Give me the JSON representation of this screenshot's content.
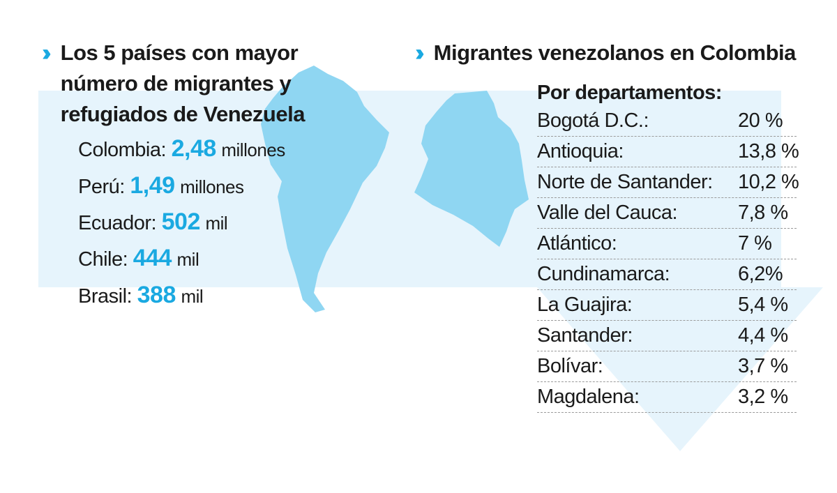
{
  "left": {
    "title": "Los 5 países con mayor número de migrantes y refugiados de Venezuela",
    "countries": [
      {
        "name": "Colombia:",
        "value": "2,48",
        "unit": "millones"
      },
      {
        "name": "Perú:",
        "value": "1,49",
        "unit": "millones"
      },
      {
        "name": "Ecuador:",
        "value": "502",
        "unit": "mil"
      },
      {
        "name": "Chile:",
        "value": "444",
        "unit": "mil"
      },
      {
        "name": "Brasil:",
        "value": "388",
        "unit": "mil"
      }
    ]
  },
  "right": {
    "title": "Migrantes venezolanos en Colombia",
    "subtitle": "Por departamentos:",
    "departments": [
      {
        "name": "Bogotá D.C.:",
        "pct": "20 %"
      },
      {
        "name": "Antioquia:",
        "pct": "13,8 %"
      },
      {
        "name": "Norte de Santander:",
        "pct": "10,2 %"
      },
      {
        "name": "Valle del Cauca:",
        "pct": "7,8 %"
      },
      {
        "name": "Atlántico:",
        "pct": "7 %"
      },
      {
        "name": "Cundinamarca:",
        "pct": "6,2%"
      },
      {
        "name": "La Guajira:",
        "pct": "5,4 %"
      },
      {
        "name": "Santander:",
        "pct": "4,4 %"
      },
      {
        "name": "Bolívar:",
        "pct": "3,7 %"
      },
      {
        "name": "Magdalena:",
        "pct": "3,2 %"
      }
    ]
  },
  "icons": {
    "section_marker": "double-chevron-icon"
  },
  "colors": {
    "accent": "#1aa9e1",
    "map": "#8fd6f2",
    "band": "#e6f4fc"
  }
}
